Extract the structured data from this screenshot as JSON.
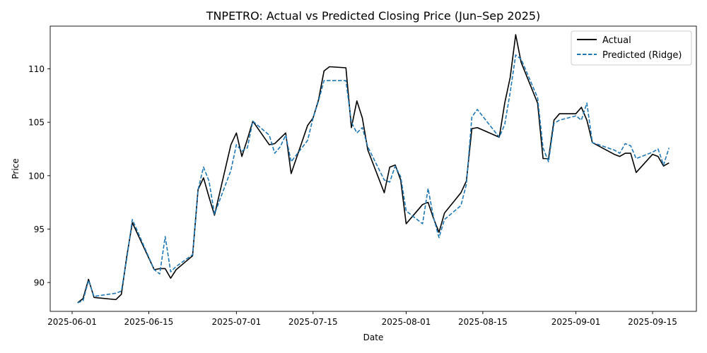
{
  "chart_data": {
    "type": "line",
    "title": "TNPETRO: Actual vs Predicted Closing Price (Jun–Sep 2025)",
    "xlabel": "Date",
    "ylabel": "Price",
    "x_type": "date",
    "xlim": [
      "2025-05-28",
      "2025-09-23"
    ],
    "ylim": [
      87.3,
      114.0
    ],
    "x_ticks": [
      "2025-06-01",
      "2025-06-15",
      "2025-07-01",
      "2025-07-15",
      "2025-08-01",
      "2025-08-15",
      "2025-09-01",
      "2025-09-15"
    ],
    "y_ticks": [
      90,
      95,
      100,
      105,
      110
    ],
    "grid": false,
    "legend_position": "top-right",
    "colors": {
      "actual": "#000000",
      "predicted": "#1f77b4"
    },
    "x": [
      "2025-06-02",
      "2025-06-03",
      "2025-06-04",
      "2025-06-05",
      "2025-06-09",
      "2025-06-10",
      "2025-06-11",
      "2025-06-12",
      "2025-06-16",
      "2025-06-17",
      "2025-06-18",
      "2025-06-19",
      "2025-06-20",
      "2025-06-23",
      "2025-06-24",
      "2025-06-25",
      "2025-06-26",
      "2025-06-27",
      "2025-06-30",
      "2025-07-01",
      "2025-07-02",
      "2025-07-03",
      "2025-07-04",
      "2025-07-07",
      "2025-07-08",
      "2025-07-09",
      "2025-07-10",
      "2025-07-11",
      "2025-07-14",
      "2025-07-15",
      "2025-07-16",
      "2025-07-17",
      "2025-07-18",
      "2025-07-21",
      "2025-07-22",
      "2025-07-23",
      "2025-07-24",
      "2025-07-25",
      "2025-07-28",
      "2025-07-29",
      "2025-07-30",
      "2025-07-31",
      "2025-08-01",
      "2025-08-04",
      "2025-08-05",
      "2025-08-06",
      "2025-08-07",
      "2025-08-08",
      "2025-08-11",
      "2025-08-12",
      "2025-08-13",
      "2025-08-14",
      "2025-08-18",
      "2025-08-19",
      "2025-08-20",
      "2025-08-21",
      "2025-08-22",
      "2025-08-25",
      "2025-08-26",
      "2025-08-27",
      "2025-08-28",
      "2025-08-29",
      "2025-09-01",
      "2025-09-02",
      "2025-09-03",
      "2025-09-04",
      "2025-09-08",
      "2025-09-09",
      "2025-09-10",
      "2025-09-11",
      "2025-09-12",
      "2025-09-15",
      "2025-09-16",
      "2025-09-17",
      "2025-09-18"
    ],
    "series": [
      {
        "name": "Actual",
        "style": "solid",
        "values": [
          88.1,
          88.5,
          90.3,
          88.6,
          88.4,
          88.9,
          92.5,
          95.6,
          91.2,
          91.3,
          91.3,
          90.4,
          91.2,
          92.5,
          98.7,
          99.8,
          98.0,
          96.3,
          102.9,
          104.0,
          101.8,
          103.4,
          105.1,
          102.9,
          103.0,
          103.5,
          104.0,
          100.2,
          104.7,
          105.4,
          107.1,
          109.8,
          110.2,
          110.1,
          104.5,
          107.0,
          105.4,
          102.4,
          98.4,
          100.8,
          101.0,
          99.6,
          95.5,
          97.3,
          97.5,
          96.0,
          94.7,
          96.5,
          98.4,
          99.5,
          104.4,
          104.5,
          103.6,
          106.8,
          109.2,
          113.2,
          110.6,
          106.8,
          101.6,
          101.6,
          105.2,
          105.8,
          105.8,
          106.4,
          105.2,
          103.1,
          102.0,
          101.8,
          102.1,
          102.1,
          100.3,
          102.0,
          101.8,
          100.9,
          101.2
        ]
      },
      {
        "name": "Predicted (Ridge)",
        "style": "dashed",
        "values": [
          88.1,
          88.3,
          90.2,
          88.7,
          89.0,
          89.2,
          92.3,
          95.9,
          91.2,
          90.8,
          94.3,
          91.0,
          91.5,
          92.6,
          98.7,
          100.8,
          99.5,
          96.4,
          100.5,
          102.9,
          102.3,
          102.6,
          105.1,
          103.8,
          102.1,
          102.7,
          103.8,
          101.3,
          103.3,
          105.4,
          107.0,
          108.9,
          108.9,
          108.9,
          105.0,
          104.0,
          104.5,
          102.7,
          99.6,
          99.4,
          100.9,
          99.9,
          96.7,
          95.5,
          98.8,
          96.1,
          94.2,
          95.9,
          97.2,
          99.2,
          105.5,
          106.2,
          103.6,
          104.8,
          107.8,
          111.3,
          110.9,
          107.3,
          102.6,
          101.3,
          104.9,
          105.2,
          105.6,
          105.2,
          106.8,
          103.1,
          102.4,
          102.1,
          103.0,
          102.8,
          101.6,
          102.2,
          102.5,
          101.0,
          102.6
        ]
      }
    ]
  }
}
